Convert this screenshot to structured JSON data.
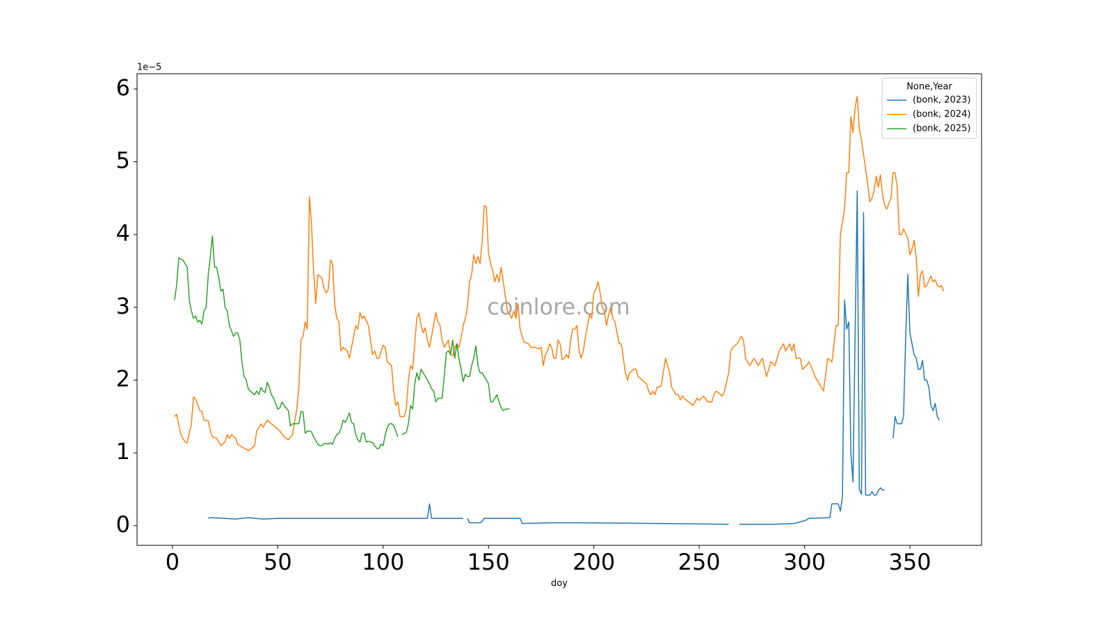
{
  "chart_data": {
    "type": "line",
    "x_label": "doy",
    "y_offset_label": "1e−5",
    "watermark": "coinlore.com",
    "legend_title": "None,Year",
    "legend_position": "upper right",
    "xlim": [
      -16.8,
      384
    ],
    "ylim": [
      -0.27,
      6.21
    ],
    "xticks": [
      0,
      50,
      100,
      150,
      200,
      250,
      300,
      350
    ],
    "yticks": [
      0,
      1,
      2,
      3,
      4,
      5,
      6
    ],
    "series": [
      {
        "name": "(bonk, 2023)",
        "color": "#1f77b4",
        "x": [
          17,
          18,
          25,
          30,
          36,
          43,
          50,
          121,
          122,
          123,
          138,
          139,
          140,
          141,
          146,
          147,
          148,
          165,
          166,
          180,
          195,
          196,
          230,
          264,
          265,
          269,
          285,
          295,
          299,
          301,
          302,
          312,
          313,
          316,
          317,
          318,
          319,
          320,
          321,
          322,
          323,
          325,
          326,
          327,
          328,
          329,
          330,
          331,
          332,
          333,
          334,
          335,
          336,
          337,
          338,
          339,
          342,
          343,
          344,
          346,
          347,
          348,
          349,
          350,
          352,
          353,
          354,
          355,
          356,
          357,
          358,
          359,
          360,
          361,
          362,
          363,
          364
        ],
        "values": [
          0.1,
          0.11,
          0.1,
          0.09,
          0.11,
          0.09,
          0.1,
          0.1,
          0.3,
          0.1,
          0.1,
          null,
          0.1,
          0.04,
          0.04,
          0.06,
          0.1,
          0.1,
          0.03,
          0.04,
          0.04,
          0.04,
          0.03,
          0.02,
          null,
          0.02,
          0.02,
          0.03,
          0.06,
          0.08,
          0.1,
          0.11,
          0.3,
          0.3,
          0.2,
          0.4,
          3.1,
          2.7,
          2.8,
          1.0,
          0.6,
          4.6,
          0.5,
          0.43,
          4.3,
          0.42,
          0.42,
          0.42,
          0.47,
          0.42,
          0.42,
          0.48,
          0.52,
          0.49,
          0.49,
          null,
          1.2,
          1.5,
          1.4,
          1.4,
          1.5,
          2.6,
          3.45,
          2.65,
          2.35,
          2.3,
          2.15,
          2.15,
          2.27,
          2.0,
          2.0,
          1.9,
          1.65,
          1.58,
          1.68,
          1.5,
          1.45
        ]
      },
      {
        "name": "(bonk, 2024)",
        "color": "#ff7f0e",
        "x": [
          1,
          2,
          4,
          6,
          7,
          9,
          10,
          11,
          13,
          14,
          15,
          17,
          18,
          19,
          21,
          23,
          25,
          26,
          27,
          28,
          30,
          31,
          33,
          35,
          36,
          37,
          39,
          40,
          42,
          43,
          45,
          47,
          49,
          51,
          53,
          55,
          57,
          59,
          60,
          61,
          62,
          63,
          64,
          65,
          66,
          67,
          68,
          69,
          71,
          72,
          73,
          74,
          75,
          76,
          77,
          78,
          79,
          80,
          81,
          83,
          84,
          86,
          87,
          88,
          89,
          90,
          91,
          93,
          94,
          95,
          96,
          97,
          98,
          100,
          101,
          102,
          104,
          105,
          106,
          107,
          108,
          110,
          111,
          112,
          113,
          114,
          115,
          116,
          117,
          118,
          119,
          120,
          121,
          122,
          123,
          125,
          126,
          127,
          128,
          129,
          130,
          131,
          132,
          133,
          134,
          135,
          136,
          137,
          138,
          139,
          140,
          141,
          142,
          143,
          144,
          145,
          146,
          147,
          148,
          149,
          150,
          151,
          152,
          153,
          154,
          155,
          156,
          157,
          158,
          159,
          160,
          161,
          162,
          163,
          164,
          165,
          166,
          167,
          169,
          170,
          172,
          174,
          175,
          176,
          177,
          178,
          179,
          180,
          181,
          182,
          183,
          184,
          185,
          186,
          187,
          188,
          189,
          190,
          191,
          192,
          193,
          194,
          195,
          196,
          197,
          198,
          199,
          200,
          201,
          202,
          203,
          204,
          205,
          206,
          207,
          208,
          209,
          210,
          211,
          212,
          213,
          214,
          215,
          216,
          217,
          219,
          220,
          221,
          223,
          225,
          226,
          227,
          228,
          229,
          230,
          232,
          234,
          235,
          236,
          237,
          238,
          239,
          240,
          241,
          242,
          243,
          245,
          246,
          247,
          248,
          249,
          250,
          252,
          253,
          254,
          256,
          257,
          258,
          259,
          261,
          262,
          264,
          265,
          266,
          268,
          270,
          271,
          272,
          274,
          276,
          278,
          280,
          282,
          283,
          284,
          286,
          288,
          290,
          291,
          292,
          293,
          294,
          295,
          296,
          298,
          299,
          301,
          302,
          303,
          305,
          307,
          309,
          311,
          313,
          315,
          316,
          317,
          319,
          320,
          321,
          322,
          323,
          324,
          325,
          326,
          327,
          328,
          329,
          330,
          331,
          332,
          333,
          334,
          335,
          336,
          337,
          338,
          339,
          341,
          342,
          343,
          344,
          345,
          346,
          347,
          349,
          350,
          351,
          352,
          353,
          354,
          355,
          356,
          357,
          358,
          360,
          361,
          362,
          363,
          364,
          365,
          366
        ],
        "values": [
          1.5,
          1.53,
          1.25,
          1.15,
          1.14,
          1.4,
          1.77,
          1.74,
          1.58,
          1.57,
          1.45,
          1.44,
          1.3,
          1.22,
          1.2,
          1.1,
          1.15,
          1.25,
          1.2,
          1.25,
          1.2,
          1.12,
          1.08,
          1.05,
          1.03,
          1.05,
          1.1,
          1.3,
          1.4,
          1.35,
          1.45,
          1.4,
          1.35,
          1.3,
          1.22,
          1.18,
          1.25,
          1.6,
          1.9,
          2.55,
          2.6,
          2.8,
          2.7,
          4.52,
          4.15,
          3.5,
          3.05,
          3.45,
          3.4,
          3.25,
          3.2,
          3.25,
          3.65,
          3.6,
          3.05,
          2.85,
          2.8,
          2.4,
          2.45,
          2.4,
          2.3,
          2.6,
          2.75,
          2.7,
          2.93,
          2.85,
          2.88,
          2.75,
          2.55,
          2.35,
          2.4,
          2.3,
          2.3,
          2.48,
          2.45,
          2.25,
          2.2,
          1.85,
          1.65,
          1.7,
          1.5,
          1.5,
          1.6,
          2.0,
          2.2,
          2.15,
          2.5,
          2.85,
          2.92,
          2.75,
          2.65,
          2.72,
          2.55,
          2.45,
          2.6,
          2.93,
          2.8,
          2.75,
          2.55,
          2.45,
          2.5,
          2.55,
          2.35,
          2.33,
          2.45,
          2.5,
          2.45,
          2.58,
          2.75,
          2.85,
          3.0,
          3.35,
          3.45,
          3.72,
          3.6,
          3.7,
          3.6,
          3.9,
          4.4,
          4.38,
          3.75,
          3.6,
          3.5,
          3.35,
          3.45,
          3.35,
          3.55,
          3.35,
          3.15,
          2.95,
          2.9,
          2.85,
          2.95,
          2.85,
          3.05,
          2.7,
          2.6,
          2.52,
          2.5,
          2.45,
          2.45,
          2.43,
          2.45,
          2.2,
          2.35,
          2.4,
          2.5,
          2.45,
          2.3,
          2.3,
          2.55,
          2.5,
          2.28,
          2.3,
          2.35,
          2.3,
          2.55,
          2.7,
          2.7,
          2.75,
          2.4,
          2.3,
          2.4,
          2.6,
          2.75,
          2.9,
          2.85,
          3.2,
          3.25,
          3.35,
          3.2,
          3.0,
          2.95,
          2.75,
          2.9,
          3.0,
          2.85,
          2.8,
          2.65,
          2.5,
          2.5,
          2.3,
          2.1,
          2.0,
          2.1,
          2.15,
          2.15,
          2.05,
          2.0,
          1.95,
          1.85,
          1.8,
          1.85,
          1.8,
          1.9,
          1.92,
          2.3,
          2.2,
          2.1,
          1.9,
          1.85,
          1.8,
          1.8,
          1.73,
          1.78,
          1.75,
          1.7,
          1.68,
          1.65,
          1.7,
          1.75,
          1.72,
          1.78,
          1.75,
          1.7,
          1.7,
          1.8,
          1.85,
          1.83,
          1.78,
          1.85,
          2.1,
          2.4,
          2.45,
          2.5,
          2.6,
          2.55,
          2.3,
          2.2,
          2.3,
          2.2,
          2.3,
          2.05,
          2.15,
          2.25,
          2.2,
          2.4,
          2.5,
          2.4,
          2.45,
          2.5,
          2.4,
          2.5,
          2.3,
          2.3,
          2.15,
          2.2,
          2.25,
          2.2,
          2.05,
          1.95,
          1.85,
          2.3,
          2.25,
          2.75,
          2.75,
          4.0,
          4.35,
          4.85,
          4.85,
          5.62,
          5.4,
          5.75,
          5.9,
          5.45,
          5.3,
          5.1,
          4.9,
          4.7,
          4.45,
          4.5,
          4.6,
          4.8,
          4.65,
          4.82,
          4.55,
          4.4,
          4.35,
          4.5,
          4.85,
          4.85,
          4.65,
          4.0,
          4.0,
          4.08,
          3.95,
          3.72,
          3.8,
          3.92,
          3.7,
          3.15,
          3.45,
          3.5,
          3.28,
          3.3,
          3.43,
          3.35,
          3.38,
          3.3,
          3.28,
          3.3,
          3.22
        ]
      },
      {
        "name": "(bonk, 2025)",
        "color": "#2ca02c",
        "x": [
          1,
          2,
          3,
          5,
          6,
          7,
          8,
          9,
          10,
          11,
          12,
          13,
          14,
          15,
          16,
          17,
          18,
          19,
          20,
          21,
          22,
          23,
          24,
          25,
          26,
          27,
          28,
          29,
          30,
          31,
          32,
          33,
          34,
          35,
          36,
          37,
          38,
          39,
          40,
          41,
          42,
          43,
          44,
          45,
          46,
          47,
          48,
          49,
          50,
          51,
          52,
          53,
          54,
          55,
          56,
          57,
          58,
          59,
          60,
          61,
          62,
          63,
          64,
          65,
          66,
          67,
          68,
          69,
          70,
          71,
          72,
          73,
          74,
          75,
          76,
          77,
          78,
          79,
          80,
          81,
          82,
          83,
          84,
          85,
          86,
          87,
          88,
          89,
          90,
          91,
          92,
          93,
          94,
          95,
          96,
          97,
          98,
          99,
          100,
          101,
          102,
          103,
          104,
          105,
          106,
          107,
          108,
          109,
          110,
          111,
          112,
          113,
          114,
          115,
          116,
          117,
          118,
          119,
          120,
          121,
          122,
          123,
          124,
          125,
          126,
          127,
          128,
          129,
          130,
          131,
          132,
          133,
          134,
          135,
          136,
          137,
          138,
          139,
          140,
          141,
          142,
          143,
          144,
          145,
          146,
          147,
          148,
          149,
          150,
          151,
          152,
          153,
          154,
          155,
          156,
          157,
          158,
          159,
          160
        ],
        "values": [
          3.1,
          3.3,
          3.68,
          3.65,
          3.6,
          3.55,
          3.1,
          2.95,
          2.85,
          2.88,
          2.8,
          2.82,
          2.77,
          2.95,
          3.0,
          3.45,
          3.7,
          3.98,
          3.55,
          3.55,
          3.4,
          3.22,
          3.25,
          3.0,
          2.95,
          2.75,
          2.68,
          2.6,
          2.65,
          2.65,
          2.55,
          2.25,
          2.05,
          2.0,
          1.88,
          1.85,
          1.82,
          1.8,
          1.85,
          1.8,
          1.9,
          1.85,
          1.83,
          1.97,
          1.9,
          1.8,
          1.75,
          1.68,
          1.6,
          1.62,
          1.7,
          1.65,
          1.62,
          1.58,
          1.37,
          1.4,
          1.4,
          1.4,
          1.4,
          1.57,
          1.56,
          1.27,
          1.3,
          1.3,
          1.29,
          1.22,
          1.17,
          1.12,
          1.1,
          1.1,
          1.13,
          1.13,
          1.12,
          1.14,
          1.12,
          1.2,
          1.25,
          1.27,
          1.33,
          1.45,
          1.42,
          1.48,
          1.55,
          1.42,
          1.4,
          1.25,
          1.18,
          1.15,
          1.27,
          1.27,
          1.15,
          1.16,
          1.15,
          1.14,
          1.1,
          1.06,
          1.06,
          1.12,
          1.1,
          1.25,
          1.35,
          1.4,
          1.4,
          1.38,
          1.3,
          1.22,
          null,
          1.25,
          1.27,
          1.28,
          1.4,
          1.65,
          1.6,
          1.95,
          2.1,
          2.0,
          2.15,
          2.1,
          2.05,
          2.0,
          1.95,
          1.88,
          1.85,
          1.7,
          1.75,
          1.75,
          1.75,
          2.05,
          2.38,
          2.4,
          2.35,
          2.55,
          2.3,
          2.5,
          2.3,
          2.15,
          1.98,
          2.08,
          2.05,
          2.05,
          2.2,
          2.3,
          2.47,
          2.2,
          2.1,
          2.1,
          2.05,
          2.0,
          1.95,
          1.7,
          1.7,
          1.75,
          1.8,
          1.7,
          1.62,
          1.58,
          1.6,
          1.6,
          1.61
        ]
      }
    ]
  }
}
